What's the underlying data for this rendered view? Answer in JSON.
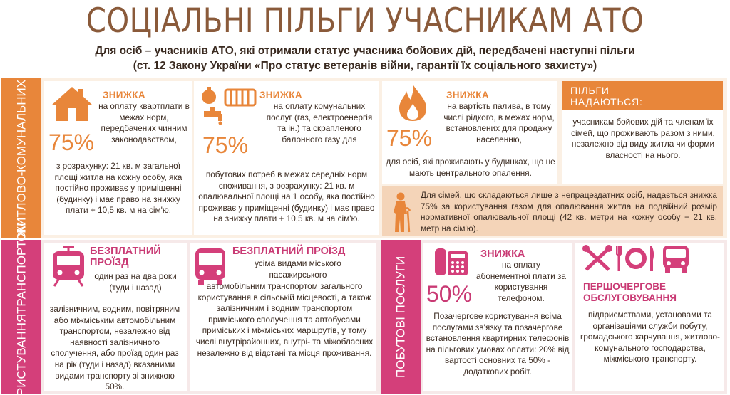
{
  "header": {
    "title": "СОЦІАЛЬНІ ПІЛЬГИ УЧАСНИКАМ АТО",
    "subtitle_line1": "Для осіб – учасників АТО, які отримали статус учасника бойових дій, передбачені наступні пільги",
    "subtitle_line2": "(ст. 12 Закону України «Про статус ветеранів війни, гарантії їх соціального захисту»)"
  },
  "housing": {
    "section_label_line1": "ОПЛАТА ЖИТЛОВО-",
    "section_label_line2": "КОМУНАЛЬНИХ ПОСЛУГ",
    "rent": {
      "heading": "ЗНИЖКА",
      "percent": "75%",
      "desc": "на оплату квартплати в межах норм, передбачених чинним законодавством,",
      "calc": "з розрахунку: 21 кв. м загальної площі житла на кожну особу, яка постійно проживає у приміщенні (будинку) і має право на знижку плати + 10,5 кв. м на сім'ю.",
      "icon": "house-icon"
    },
    "utilities": {
      "heading": "ЗНИЖКА",
      "percent": "75%",
      "desc": "на оплату комунальних послуг (газ, електроенергія та ін.) та скрапленого балонного газу для",
      "calc": "побутових потреб в межах середніх норм споживання, з розрахунку: 21 кв. м опалювальної площі на 1 особу, яка постійно проживає у приміщенні (будинку) і має право на знижку плати + 10,5 кв. м на сім'ю.",
      "icon": "utilities-icon"
    },
    "fuel": {
      "heading": "ЗНИЖКА",
      "percent": "75%",
      "desc": "на вартість палива, в тому числі рідкого, в межах норм, встановлених для продажу населенню,",
      "calc": "для осіб, які проживають у будинках, що не мають центрального опалення.",
      "icon": "flame-icon"
    },
    "granted": {
      "heading_line1": "ПІЛЬГИ",
      "heading_line2": "НАДАЮТЬСЯ:",
      "text": "учасникам бойових дій та членам їх сімей, що проживають разом з ними, незалежно від виду житла чи форми власності на нього."
    },
    "family": {
      "text": "Для сімей, що складаються лише з непрацездатних осіб, надається знижка 75% за користування газом для опалювання житла на подвійний розмір нормативної опалювальної площі (42 кв. метри на кожну особу + 21 кв. метр на сім'ю).",
      "icon": "elderly-person-icon"
    }
  },
  "transport": {
    "section_label_line1": "КОРИСТУВАННЯ",
    "section_label_line2": "ТРАНСПОРТОМ",
    "rail": {
      "heading_line1": "БЕЗПЛАТНИЙ",
      "heading_line2": "ПРОЇЗД",
      "text_top": "один раз на два роки (туди і назад)",
      "text": "залізничним, водним, повітряним або міжміським автомобільним транспортом, незалежно від наявності залізничного сполучення, або проїзд один раз на рік (туди і назад) вказаними видами транспорту зі знижкою 50%.",
      "icon": "train-icon"
    },
    "city": {
      "heading": "БЕЗПЛАТНИЙ ПРОЇЗД",
      "text_top": "усіма видами міського пасажирського",
      "text": "автомобільним транспортом загального користування в сільській місцевості, а також залізничним і водним транспортом приміського сполучення та автобусами приміських і міжміських маршрутів, у тому числі внутрірайонних, внутрі- та міжобласних незалежно від відстані та місця проживання.",
      "icon": "bus-icon"
    }
  },
  "services": {
    "section_label": "ПОБУТОВІ ПОСЛУГИ",
    "phone": {
      "heading": "ЗНИЖКА",
      "percent": "50%",
      "desc": "на оплату абонементної плати за користування телефоном.",
      "text": "Позачергове користування всіма послугами зв'язку та позачергове встановлення квартирних телефонів на пільгових умовах оплати: 20% від вартості основних та 50% - додаткових робіт.",
      "icon": "telephone-icon"
    },
    "priority": {
      "heading_line1": "ПЕРШОЧЕРГОВЕ",
      "heading_line2": "ОБСЛУГОВУВАННЯ",
      "text": "підприємствами, установами та організаціями служби побуту, громадського харчування, житлово-комунального господарства, міжміського транспорту.",
      "icons": [
        "tools-icon",
        "cutlery-icon",
        "bus-icon"
      ]
    }
  },
  "colors": {
    "orange": "#e8863a",
    "pink": "#d43f7a",
    "brown": "#8a5a3a"
  }
}
